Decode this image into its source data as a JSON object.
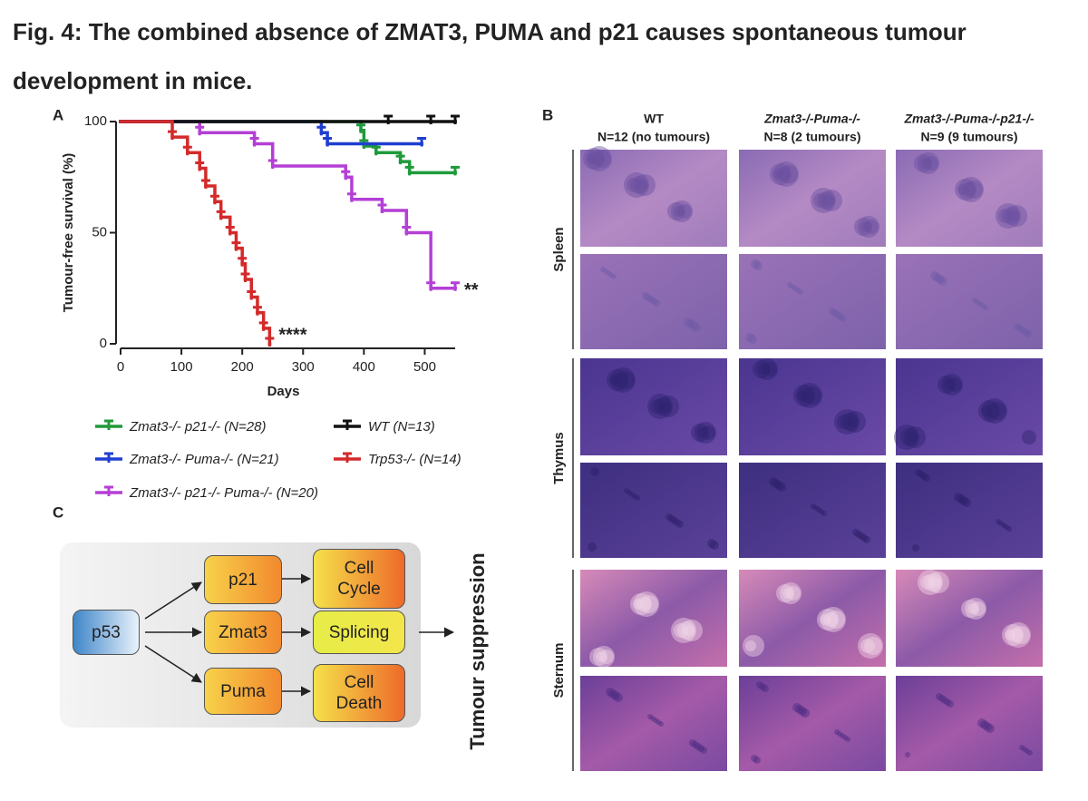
{
  "title": "Fig. 4: The combined absence of ZMAT3, PUMA and p21 causes spontaneous tumour development in mice.",
  "panels": [
    "A",
    "B",
    "C"
  ],
  "chart_data": {
    "type": "line",
    "step": true,
    "ylabel": "Tumour-free survival (%)",
    "xlabel": "Days",
    "xlim": [
      0,
      550
    ],
    "ylim": [
      0,
      100
    ],
    "xticks": [
      0,
      100,
      200,
      300,
      400,
      500
    ],
    "yticks": [
      0,
      50,
      100
    ],
    "legend": "bottom",
    "series": [
      {
        "name": "Zmat3-/- p21-/- (N=28)",
        "color": "#1f9a3a",
        "x": [
          0,
          395,
          400,
          420,
          460,
          475,
          550
        ],
        "values": [
          100,
          96,
          89,
          86,
          82,
          77,
          77
        ]
      },
      {
        "name": "Zmat3-/- Puma-/- (N=21)",
        "color": "#1f3fd1",
        "x": [
          0,
          330,
          340,
          495
        ],
        "values": [
          100,
          95,
          90,
          90
        ]
      },
      {
        "name": "Zmat3-/- p21-/- Puma-/- (N=20)",
        "color": "#b43fd6",
        "x": [
          0,
          130,
          220,
          250,
          370,
          380,
          430,
          470,
          510,
          550
        ],
        "values": [
          100,
          95,
          90,
          80,
          75,
          65,
          60,
          50,
          25,
          25
        ],
        "annotation": "**"
      },
      {
        "name": "WT (N=13)",
        "color": "#111111",
        "x": [
          0,
          440,
          510,
          550
        ],
        "values": [
          100,
          100,
          100,
          100
        ]
      },
      {
        "name": "Trp53-/- (N=14)",
        "color": "#d42a2a",
        "x": [
          0,
          85,
          110,
          130,
          140,
          155,
          165,
          180,
          190,
          200,
          205,
          215,
          225,
          235,
          245
        ],
        "values": [
          100,
          93,
          86,
          79,
          71,
          64,
          57,
          50,
          43,
          36,
          29,
          21,
          14,
          7,
          0
        ],
        "annotation": "****"
      }
    ]
  },
  "histology": {
    "columns": [
      {
        "genotype": "WT",
        "count": "N=12 (no tumours)"
      },
      {
        "genotype": "Zmat3-/-Puma-/-",
        "count": "N=8 (2 tumours)"
      },
      {
        "genotype": "Zmat3-/-Puma-/-p21-/-",
        "count": "N=9 (9 tumours)"
      }
    ],
    "tissues": [
      "Spleen",
      "Thymus",
      "Sternum"
    ]
  },
  "diagram": {
    "nodes": [
      "p53",
      "p21",
      "Zmat3",
      "Puma",
      "Cell Cycle",
      "Splicing",
      "Cell Death"
    ],
    "output": "Tumour suppression"
  }
}
